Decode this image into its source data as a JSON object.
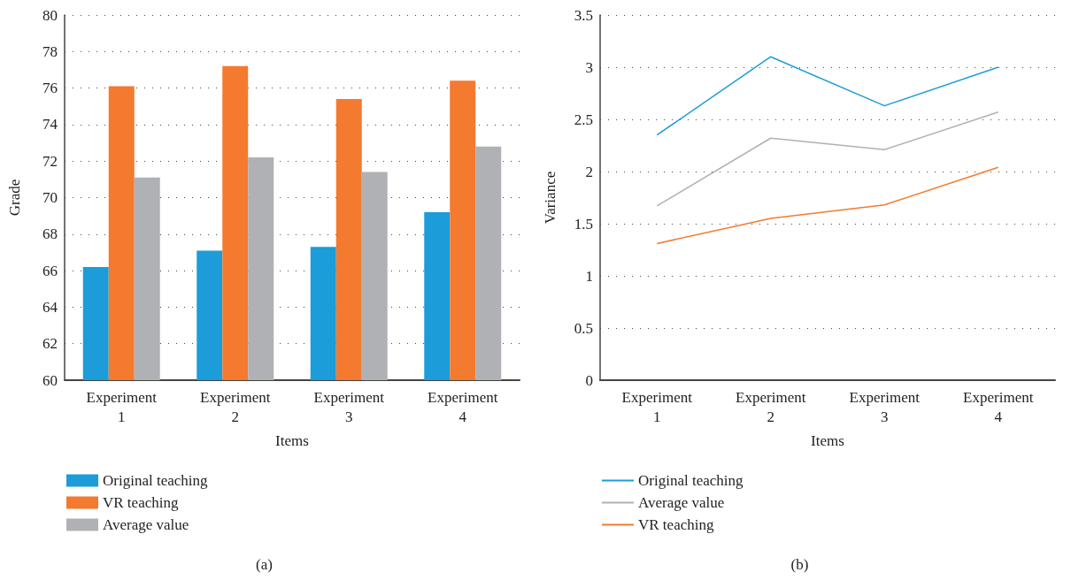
{
  "chart_data": [
    {
      "type": "bar",
      "categories": [
        "Experiment\n1",
        "Experiment\n2",
        "Experiment\n3",
        "Experiment\n4"
      ],
      "xlabel": "Items",
      "ylabel": "Grade",
      "ylim": [
        60,
        80
      ],
      "yticks": [
        60,
        62,
        64,
        66,
        68,
        70,
        72,
        74,
        76,
        78,
        80
      ],
      "grid": "y",
      "legend": "bottom",
      "annotations": [
        "(a)"
      ],
      "series": [
        {
          "name": "Original teaching",
          "color": "#1c9cd8",
          "values": [
            66.2,
            67.1,
            67.3,
            69.2
          ]
        },
        {
          "name": "VR teaching",
          "color": "#f37a2f",
          "values": [
            76.1,
            77.2,
            75.4,
            76.4
          ]
        },
        {
          "name": "Average value",
          "color": "#b0b1b4",
          "values": [
            71.1,
            72.2,
            71.4,
            72.8
          ]
        }
      ]
    },
    {
      "type": "line",
      "categories": [
        "Experiment\n1",
        "Experiment\n2",
        "Experiment\n3",
        "Experiment\n4"
      ],
      "xlabel": "Items",
      "ylabel": "Variance",
      "ylim": [
        0,
        3.5
      ],
      "yticks": [
        0,
        0.5,
        1,
        1.5,
        2,
        2.5,
        3,
        3.5
      ],
      "grid": "y",
      "legend": "bottom",
      "marker": "none",
      "line_style": "solid",
      "annotations": [
        "(b)"
      ],
      "series": [
        {
          "name": "Original teaching",
          "color": "#1c9cd8",
          "values": [
            2.35,
            3.1,
            2.63,
            3.0
          ]
        },
        {
          "name": "Average value",
          "color": "#b0b1b4",
          "values": [
            1.67,
            2.32,
            2.21,
            2.57
          ]
        },
        {
          "name": "VR teaching",
          "color": "#f37a2f",
          "values": [
            1.31,
            1.55,
            1.68,
            2.04
          ]
        }
      ]
    }
  ]
}
